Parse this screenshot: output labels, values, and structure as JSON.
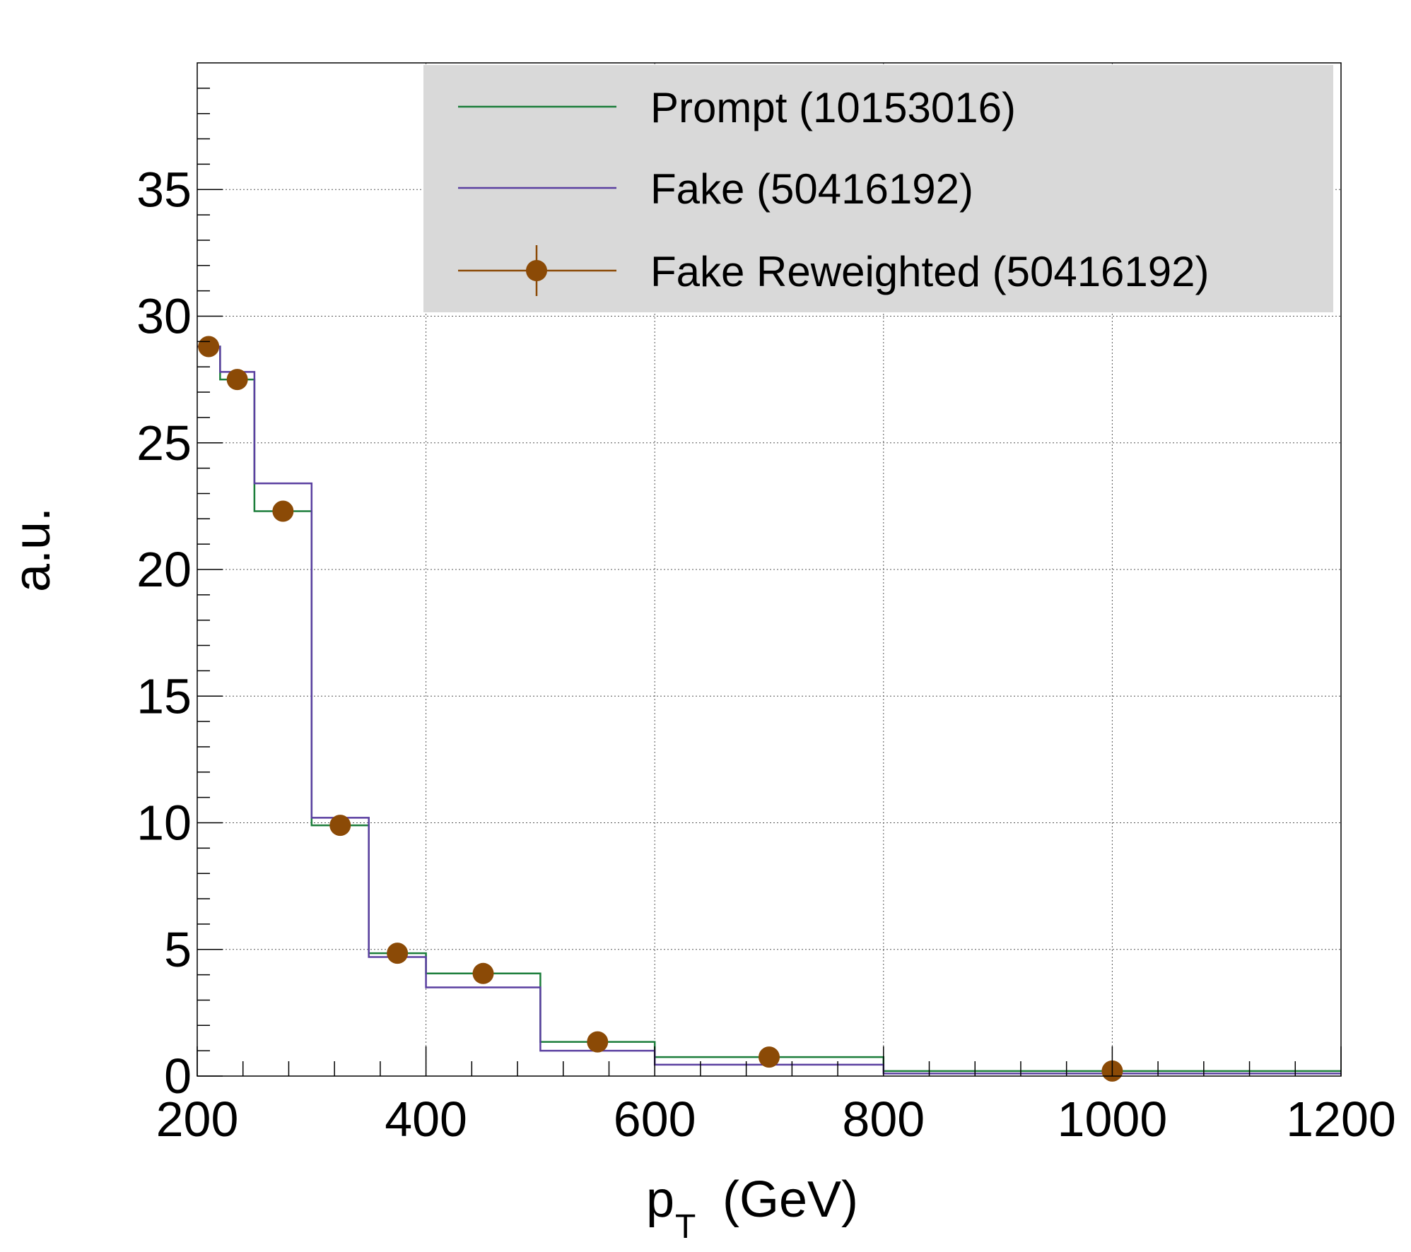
{
  "chart_data": {
    "type": "histogram",
    "xlabel_main": "p",
    "xlabel_sub": "T",
    "xlabel_unit": "(GeV)",
    "ylabel": "a.u.",
    "xlim": [
      200,
      1200
    ],
    "ylim": [
      0,
      40
    ],
    "x_ticks": [
      200,
      400,
      600,
      800,
      1000,
      1200
    ],
    "y_ticks": [
      0,
      5,
      10,
      15,
      20,
      25,
      30,
      35
    ],
    "grid": true,
    "legend_position": "top-right",
    "bin_edges": [
      200,
      220,
      250,
      300,
      350,
      400,
      500,
      600,
      800,
      1200
    ],
    "series": [
      {
        "name": "Prompt (10153016)",
        "style": "step",
        "color": "#1b7d3a",
        "values": [
          28.8,
          27.5,
          22.3,
          9.9,
          4.85,
          4.05,
          1.35,
          0.75,
          0.2
        ]
      },
      {
        "name": "Fake (50416192)",
        "style": "step",
        "color": "#5a3fa0",
        "values": [
          28.8,
          27.8,
          23.4,
          10.2,
          4.7,
          3.5,
          1.0,
          0.45,
          0.1
        ]
      },
      {
        "name": "Fake Reweighted (50416192)",
        "style": "markers",
        "color": "#8b4a06",
        "x": [
          210,
          235,
          275,
          325,
          375,
          450,
          550,
          700,
          1000
        ],
        "values": [
          28.8,
          27.5,
          22.3,
          9.9,
          4.85,
          4.05,
          1.35,
          0.75,
          0.2
        ]
      }
    ]
  }
}
